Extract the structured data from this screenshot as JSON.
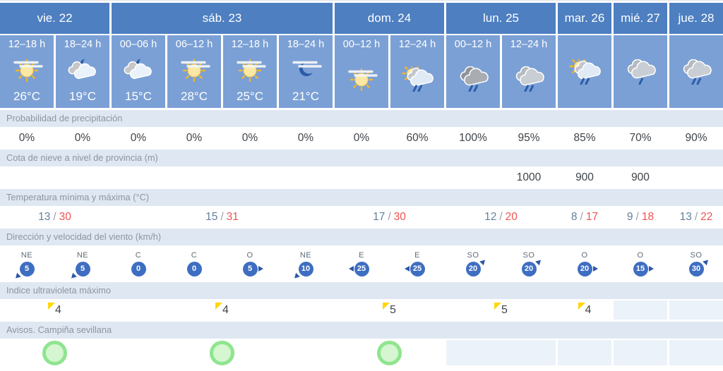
{
  "header": {
    "days": [
      {
        "label": "vie. 22",
        "span": 2
      },
      {
        "label": "sáb. 23",
        "span": 4
      },
      {
        "label": "dom. 24",
        "span": 2
      },
      {
        "label": "lun. 25",
        "span": 2
      },
      {
        "label": "mar. 26",
        "span": 1
      },
      {
        "label": "mié. 27",
        "span": 1
      },
      {
        "label": "jue. 28",
        "span": 1
      }
    ],
    "slots": [
      {
        "time": "12–18 h",
        "icon": "sun-haze",
        "temp": "26°C"
      },
      {
        "time": "18–24 h",
        "icon": "cloud-moon",
        "temp": "19°C"
      },
      {
        "time": "00–06 h",
        "icon": "cloud-moon",
        "temp": "15°C"
      },
      {
        "time": "06–12 h",
        "icon": "sun-haze",
        "temp": "28°C"
      },
      {
        "time": "12–18 h",
        "icon": "sun-haze",
        "temp": "25°C"
      },
      {
        "time": "18–24 h",
        "icon": "moon-haze",
        "temp": "21°C"
      },
      {
        "time": "00–12 h",
        "icon": "sun-haze",
        "temp": null
      },
      {
        "time": "12–24 h",
        "icon": "sun-cloud-rain",
        "temp": null
      },
      {
        "time": "00–12 h",
        "icon": "dark-clouds-rain",
        "temp": null
      },
      {
        "time": "12–24 h",
        "icon": "clouds-rain",
        "temp": null
      },
      {
        "time": null,
        "icon": "sun-cloud-rain",
        "temp": null
      },
      {
        "time": null,
        "icon": "clouds-light-rain",
        "temp": null
      },
      {
        "time": null,
        "icon": "clouds-rain",
        "temp": null
      }
    ]
  },
  "sections": {
    "precipitation": {
      "label": "Probabilidad de precipitación",
      "values": [
        "0%",
        "0%",
        "0%",
        "0%",
        "0%",
        "0%",
        "0%",
        "60%",
        "100%",
        "95%",
        "85%",
        "70%",
        "90%"
      ]
    },
    "snow_level": {
      "label": "Cota de nieve a nivel de provincia (m)",
      "values": [
        "",
        "",
        "",
        "",
        "",
        "",
        "",
        "",
        "",
        "1000",
        "900",
        "900",
        ""
      ]
    },
    "temperature": {
      "label": "Temperatura mínima y máxima (°C)",
      "values": [
        {
          "min": "13",
          "max": "30",
          "span": 2
        },
        {
          "min": "15",
          "max": "31",
          "span": 4
        },
        {
          "min": "17",
          "max": "30",
          "span": 2
        },
        {
          "min": "12",
          "max": "20",
          "span": 2
        },
        {
          "min": "8",
          "max": "17",
          "span": 1
        },
        {
          "min": "9",
          "max": "18",
          "span": 1
        },
        {
          "min": "13",
          "max": "22",
          "span": 1
        }
      ],
      "separator": "/"
    },
    "wind": {
      "label": "Dirección y velocidad del viento (km/h)",
      "values": [
        {
          "dir": "NE",
          "speed": "5",
          "arrow": "sw"
        },
        {
          "dir": "NE",
          "speed": "5",
          "arrow": "sw"
        },
        {
          "dir": "C",
          "speed": "0",
          "arrow": "none"
        },
        {
          "dir": "C",
          "speed": "0",
          "arrow": "none"
        },
        {
          "dir": "O",
          "speed": "5",
          "arrow": "e"
        },
        {
          "dir": "NE",
          "speed": "10",
          "arrow": "sw"
        },
        {
          "dir": "E",
          "speed": "25",
          "arrow": "w"
        },
        {
          "dir": "E",
          "speed": "25",
          "arrow": "w"
        },
        {
          "dir": "SO",
          "speed": "20",
          "arrow": "ne"
        },
        {
          "dir": "SO",
          "speed": "20",
          "arrow": "ne"
        },
        {
          "dir": "O",
          "speed": "20",
          "arrow": "e"
        },
        {
          "dir": "O",
          "speed": "15",
          "arrow": "e"
        },
        {
          "dir": "SO",
          "speed": "30",
          "arrow": "ne"
        }
      ]
    },
    "uv": {
      "label": "Indice ultravioleta máximo",
      "values": [
        {
          "value": "4",
          "span": 2
        },
        {
          "value": "4",
          "span": 4
        },
        {
          "value": "5",
          "span": 2
        },
        {
          "value": "5",
          "span": 2
        },
        {
          "value": "4",
          "span": 1
        },
        {
          "value": "",
          "span": 1
        },
        {
          "value": "",
          "span": 1
        }
      ]
    },
    "warnings": {
      "label": "Avisos. Campiña sevillana",
      "values": [
        {
          "alert": true,
          "span": 2
        },
        {
          "alert": true,
          "span": 4
        },
        {
          "alert": true,
          "span": 2
        },
        {
          "alert": false,
          "span": 2
        },
        {
          "alert": false,
          "span": 1
        },
        {
          "alert": false,
          "span": 1
        },
        {
          "alert": false,
          "span": 1
        }
      ]
    }
  },
  "colors": {
    "header_blue": "#4d7fc1",
    "cell_blue": "#7ba0d5",
    "band_bg": "#dfe8f2",
    "band_text": "#8b96a1",
    "value_text": "#3f4449",
    "empty_cell": "#ecf2f9",
    "wind_badge_blue": "#3e6ec1",
    "wind_arrow_blue": "#2b57a8",
    "temp_min": "#64809c",
    "temp_max": "#ee5350",
    "alert_green": "#8fe58f",
    "alert_fill": "#d5f6d1",
    "uv_yellow": "#ffd60b",
    "moon_navy": "#2b5ca8"
  }
}
